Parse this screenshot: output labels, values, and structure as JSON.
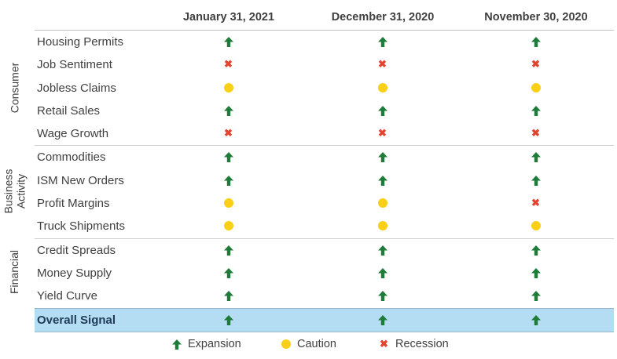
{
  "chart_data": {
    "type": "table",
    "columns": [
      "January 31, 2021",
      "December 31, 2020",
      "November 30, 2020"
    ],
    "groups": [
      {
        "name": "Consumer",
        "rows": [
          {
            "label": "Housing Permits",
            "signals": [
              "expansion",
              "expansion",
              "expansion"
            ]
          },
          {
            "label": "Job Sentiment",
            "signals": [
              "recession",
              "recession",
              "recession"
            ]
          },
          {
            "label": "Jobless Claims",
            "signals": [
              "caution",
              "caution",
              "caution"
            ]
          },
          {
            "label": "Retail Sales",
            "signals": [
              "expansion",
              "expansion",
              "expansion"
            ]
          },
          {
            "label": "Wage Growth",
            "signals": [
              "recession",
              "recession",
              "recession"
            ]
          }
        ]
      },
      {
        "name": "Business Activity",
        "rows": [
          {
            "label": "Commodities",
            "signals": [
              "expansion",
              "expansion",
              "expansion"
            ]
          },
          {
            "label": "ISM New Orders",
            "signals": [
              "expansion",
              "expansion",
              "expansion"
            ]
          },
          {
            "label": "Profit Margins",
            "signals": [
              "caution",
              "caution",
              "recession"
            ]
          },
          {
            "label": "Truck Shipments",
            "signals": [
              "caution",
              "caution",
              "caution"
            ]
          }
        ]
      },
      {
        "name": "Financial",
        "rows": [
          {
            "label": "Credit Spreads",
            "signals": [
              "expansion",
              "expansion",
              "expansion"
            ]
          },
          {
            "label": "Money Supply",
            "signals": [
              "expansion",
              "expansion",
              "expansion"
            ]
          },
          {
            "label": "Yield Curve",
            "signals": [
              "expansion",
              "expansion",
              "expansion"
            ]
          }
        ]
      }
    ],
    "overall": {
      "label": "Overall Signal",
      "signals": [
        "expansion",
        "expansion",
        "expansion"
      ]
    },
    "legend": [
      {
        "key": "expansion",
        "label": "Expansion",
        "icon": "up-arrow-icon",
        "color": "#1e7b3a"
      },
      {
        "key": "caution",
        "label": "Caution",
        "icon": "circle-icon",
        "color": "#f9cf17"
      },
      {
        "key": "recession",
        "label": "Recession",
        "icon": "x-icon",
        "color": "#e4432f"
      }
    ],
    "overall_highlight_color": "#b4dcf2"
  }
}
